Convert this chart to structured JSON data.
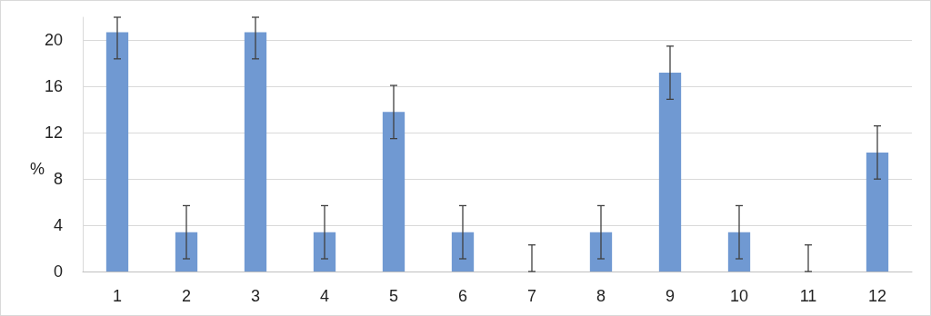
{
  "chart_data": {
    "type": "bar",
    "ylabel": "%",
    "categories": [
      "1",
      "2",
      "3",
      "4",
      "5",
      "6",
      "7",
      "8",
      "9",
      "10",
      "11",
      "12"
    ],
    "values": [
      20.7,
      3.4,
      20.7,
      3.4,
      13.8,
      3.4,
      0,
      3.4,
      17.2,
      3.4,
      0,
      10.3
    ],
    "errors": [
      [
        18.4,
        22
      ],
      2.3,
      [
        18.4,
        22
      ],
      2.3,
      2.3,
      2.3,
      [
        0,
        2.3
      ],
      2.3,
      2.3,
      2.3,
      [
        0,
        2.3
      ],
      2.3
    ],
    "color": "#7099d2",
    "ylim": [
      0,
      22
    ],
    "yticks": [
      0,
      4,
      8,
      12,
      16,
      20
    ],
    "grid": "y"
  }
}
